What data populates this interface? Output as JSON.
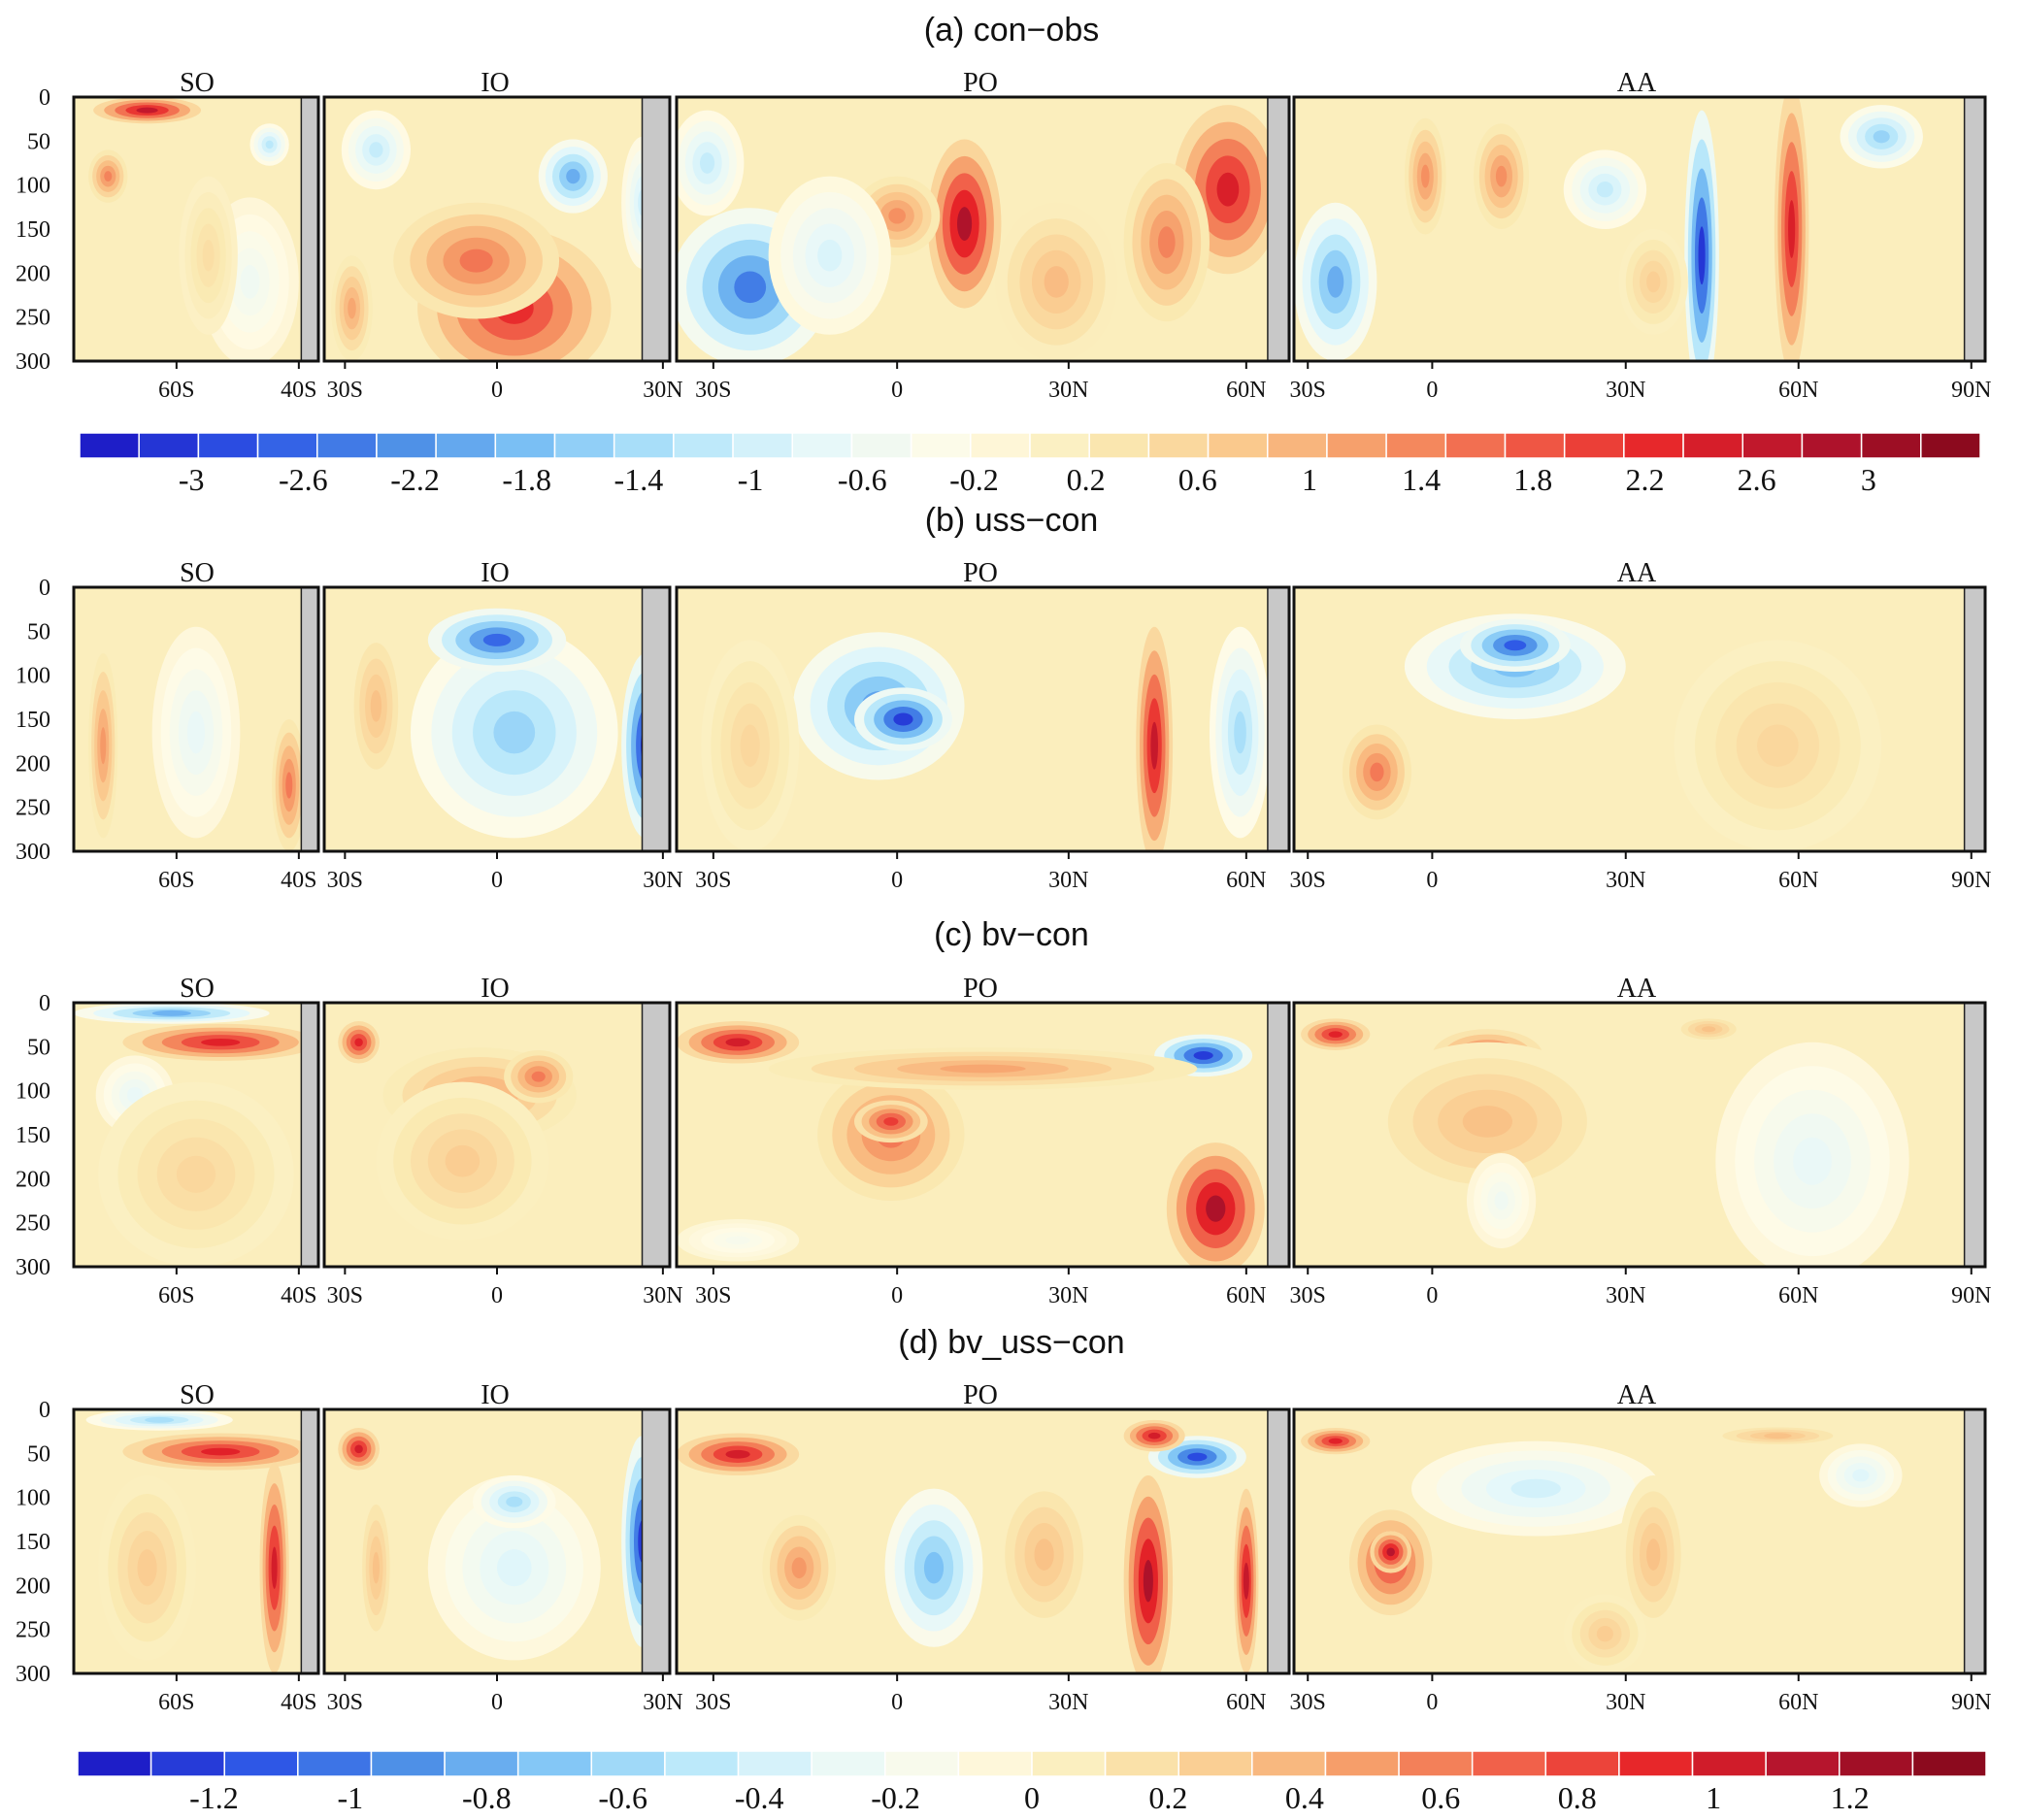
{
  "chart_data": {
    "type": "heatmap",
    "colormap_stops": [
      "#1e1ec8",
      "#2d55e6",
      "#4a8ce6",
      "#7dc3f5",
      "#b4e6fa",
      "#e6f8fa",
      "#fffbe6",
      "#faebb4",
      "#fac88c",
      "#f59664",
      "#f05a46",
      "#e62328",
      "#b4142d",
      "#8c0a1e"
    ],
    "depth_ticks": [
      "0",
      "50",
      "100",
      "150",
      "200",
      "250",
      "300"
    ],
    "depth_range": [
      0,
      300
    ],
    "basins": [
      {
        "name": "SO",
        "lon_ticks": [
          "60S",
          "40S"
        ]
      },
      {
        "name": "IO",
        "lon_ticks": [
          "30S",
          "0",
          "30N"
        ]
      },
      {
        "name": "PO",
        "lon_ticks": [
          "30S",
          "0",
          "30N",
          "60N"
        ]
      },
      {
        "name": "AA",
        "lon_ticks": [
          "30S",
          "0",
          "30N",
          "60N",
          "90N"
        ]
      }
    ],
    "panels": [
      {
        "title": "(a) con−obs",
        "colorbar": [
          "-3",
          "-2.6",
          "-2.2",
          "-1.8",
          "-1.4",
          "-1",
          "-0.6",
          "-0.2",
          "0.2",
          "0.6",
          "1",
          "1.4",
          "1.8",
          "2.2",
          "2.6",
          "3"
        ],
        "range": [
          -3,
          3
        ],
        "features": [
          [
            0,
            0.3,
            0.05,
            0.22,
            0.05,
            2.4
          ],
          [
            0,
            0.14,
            0.3,
            0.08,
            0.1,
            1.3
          ],
          [
            0,
            0.8,
            0.18,
            0.08,
            0.08,
            -1.1
          ],
          [
            0,
            0.72,
            0.7,
            0.2,
            0.32,
            -0.5
          ],
          [
            0,
            0.55,
            0.6,
            0.12,
            0.3,
            0.4
          ],
          [
            1,
            0.55,
            0.8,
            0.28,
            0.3,
            2.0
          ],
          [
            1,
            0.44,
            0.62,
            0.24,
            0.22,
            1.4
          ],
          [
            1,
            0.72,
            0.3,
            0.1,
            0.14,
            -1.8
          ],
          [
            1,
            0.15,
            0.2,
            0.1,
            0.15,
            -1.0
          ],
          [
            1,
            0.92,
            0.4,
            0.06,
            0.25,
            -0.9
          ],
          [
            1,
            0.08,
            0.8,
            0.06,
            0.2,
            1.0
          ],
          [
            2,
            0.12,
            0.72,
            0.13,
            0.3,
            -2.2
          ],
          [
            2,
            0.05,
            0.25,
            0.06,
            0.2,
            -1.0
          ],
          [
            2,
            0.47,
            0.48,
            0.06,
            0.32,
            2.6
          ],
          [
            2,
            0.36,
            0.45,
            0.07,
            0.15,
            1.2
          ],
          [
            2,
            0.9,
            0.35,
            0.09,
            0.32,
            2.2
          ],
          [
            2,
            0.8,
            0.55,
            0.07,
            0.3,
            1.3
          ],
          [
            2,
            0.62,
            0.7,
            0.1,
            0.3,
            0.8
          ],
          [
            2,
            0.25,
            0.6,
            0.1,
            0.3,
            -0.8
          ],
          [
            3,
            0.59,
            0.6,
            0.025,
            0.55,
            -2.8
          ],
          [
            3,
            0.72,
            0.5,
            0.025,
            0.55,
            2.2
          ],
          [
            3,
            0.06,
            0.7,
            0.06,
            0.3,
            -1.8
          ],
          [
            3,
            0.85,
            0.15,
            0.06,
            0.12,
            -1.4
          ],
          [
            3,
            0.45,
            0.35,
            0.06,
            0.15,
            -1.0
          ],
          [
            3,
            0.3,
            0.3,
            0.04,
            0.2,
            1.2
          ],
          [
            3,
            0.19,
            0.3,
            0.03,
            0.22,
            1.2
          ],
          [
            3,
            0.52,
            0.7,
            0.05,
            0.2,
            0.6
          ]
        ]
      },
      {
        "title": "(b) uss−con",
        "colorbar": [],
        "range": [
          -1.2,
          1.2
        ],
        "features": [
          [
            0,
            0.5,
            0.55,
            0.18,
            0.4,
            -0.25
          ],
          [
            0,
            0.12,
            0.6,
            0.06,
            0.35,
            0.45
          ],
          [
            0,
            0.88,
            0.75,
            0.07,
            0.25,
            0.55
          ],
          [
            1,
            0.55,
            0.55,
            0.3,
            0.4,
            -0.55
          ],
          [
            1,
            0.5,
            0.2,
            0.2,
            0.12,
            -0.95
          ],
          [
            1,
            0.93,
            0.6,
            0.07,
            0.35,
            -1.15
          ],
          [
            1,
            0.15,
            0.45,
            0.08,
            0.3,
            0.3
          ],
          [
            2,
            0.33,
            0.45,
            0.14,
            0.28,
            -0.75
          ],
          [
            2,
            0.37,
            0.5,
            0.08,
            0.12,
            -1.1
          ],
          [
            2,
            0.78,
            0.6,
            0.03,
            0.45,
            0.95
          ],
          [
            2,
            0.92,
            0.55,
            0.05,
            0.4,
            -0.5
          ],
          [
            2,
            0.12,
            0.6,
            0.08,
            0.4,
            0.2
          ],
          [
            3,
            0.32,
            0.3,
            0.16,
            0.2,
            -0.65
          ],
          [
            3,
            0.32,
            0.22,
            0.08,
            0.1,
            -1.0
          ],
          [
            3,
            0.12,
            0.7,
            0.05,
            0.18,
            0.55
          ],
          [
            3,
            0.7,
            0.6,
            0.15,
            0.4,
            0.2
          ]
        ]
      },
      {
        "title": "(c) bv−con",
        "colorbar": [],
        "range": [
          -1.2,
          1.2
        ],
        "features": [
          [
            0,
            0.6,
            0.15,
            0.4,
            0.07,
            0.85
          ],
          [
            0,
            0.4,
            0.04,
            0.4,
            0.04,
            -0.7
          ],
          [
            0,
            0.25,
            0.35,
            0.16,
            0.15,
            -0.25
          ],
          [
            0,
            0.5,
            0.65,
            0.4,
            0.35,
            0.2
          ],
          [
            1,
            0.1,
            0.15,
            0.06,
            0.08,
            0.85
          ],
          [
            1,
            0.45,
            0.35,
            0.28,
            0.18,
            0.4
          ],
          [
            1,
            0.4,
            0.6,
            0.25,
            0.3,
            0.25
          ],
          [
            1,
            0.62,
            0.28,
            0.1,
            0.1,
            0.55
          ],
          [
            2,
            0.1,
            0.15,
            0.1,
            0.08,
            0.9
          ],
          [
            2,
            0.86,
            0.2,
            0.08,
            0.08,
            -1.1
          ],
          [
            2,
            0.88,
            0.78,
            0.08,
            0.25,
            1.05
          ],
          [
            2,
            0.35,
            0.5,
            0.12,
            0.25,
            0.55
          ],
          [
            2,
            0.35,
            0.45,
            0.06,
            0.08,
            0.75
          ],
          [
            2,
            0.1,
            0.9,
            0.1,
            0.08,
            -0.15
          ],
          [
            2,
            0.5,
            0.25,
            0.35,
            0.08,
            0.4
          ],
          [
            3,
            0.06,
            0.12,
            0.05,
            0.06,
            0.85
          ],
          [
            3,
            0.28,
            0.2,
            0.08,
            0.1,
            0.65
          ],
          [
            3,
            0.28,
            0.45,
            0.18,
            0.3,
            0.3
          ],
          [
            3,
            0.75,
            0.6,
            0.14,
            0.45,
            -0.25
          ],
          [
            3,
            0.3,
            0.75,
            0.05,
            0.18,
            -0.2
          ],
          [
            3,
            0.6,
            0.1,
            0.05,
            0.05,
            0.3
          ]
        ]
      },
      {
        "title": "(d) bv_uss−con",
        "colorbar": [
          "-1.2",
          "-1",
          "-0.8",
          "-0.6",
          "-0.4",
          "-0.2",
          "0",
          "0.2",
          "0.4",
          "0.6",
          "0.8",
          "1",
          "1.2"
        ],
        "range": [
          -1.2,
          1.2
        ],
        "features": [
          [
            0,
            0.6,
            0.16,
            0.4,
            0.07,
            0.85
          ],
          [
            0,
            0.35,
            0.04,
            0.3,
            0.04,
            -0.5
          ],
          [
            0,
            0.82,
            0.6,
            0.06,
            0.4,
            0.9
          ],
          [
            0,
            0.3,
            0.6,
            0.2,
            0.35,
            0.25
          ],
          [
            1,
            0.1,
            0.15,
            0.06,
            0.08,
            0.9
          ],
          [
            1,
            0.55,
            0.6,
            0.25,
            0.35,
            -0.3
          ],
          [
            1,
            0.92,
            0.5,
            0.06,
            0.4,
            -1.1
          ],
          [
            1,
            0.55,
            0.35,
            0.12,
            0.1,
            -0.5
          ],
          [
            1,
            0.15,
            0.6,
            0.05,
            0.3,
            0.3
          ],
          [
            2,
            0.1,
            0.17,
            0.1,
            0.08,
            0.9
          ],
          [
            2,
            0.85,
            0.18,
            0.08,
            0.08,
            -1.05
          ],
          [
            2,
            0.77,
            0.65,
            0.04,
            0.4,
            1.05
          ],
          [
            2,
            0.78,
            0.1,
            0.05,
            0.06,
            0.9
          ],
          [
            2,
            0.42,
            0.6,
            0.08,
            0.3,
            -0.65
          ],
          [
            2,
            0.2,
            0.6,
            0.06,
            0.2,
            0.45
          ],
          [
            2,
            0.6,
            0.55,
            0.08,
            0.3,
            0.3
          ],
          [
            2,
            0.93,
            0.65,
            0.02,
            0.35,
            0.95
          ],
          [
            3,
            0.14,
            0.58,
            0.06,
            0.2,
            0.75
          ],
          [
            3,
            0.14,
            0.54,
            0.03,
            0.08,
            1.0
          ],
          [
            3,
            0.06,
            0.12,
            0.05,
            0.05,
            0.85
          ],
          [
            3,
            0.35,
            0.3,
            0.18,
            0.18,
            -0.35
          ],
          [
            3,
            0.52,
            0.55,
            0.05,
            0.3,
            0.3
          ],
          [
            3,
            0.82,
            0.25,
            0.06,
            0.12,
            -0.3
          ],
          [
            3,
            0.45,
            0.85,
            0.06,
            0.15,
            0.25
          ],
          [
            3,
            0.7,
            0.1,
            0.1,
            0.04,
            0.3
          ]
        ]
      }
    ]
  }
}
